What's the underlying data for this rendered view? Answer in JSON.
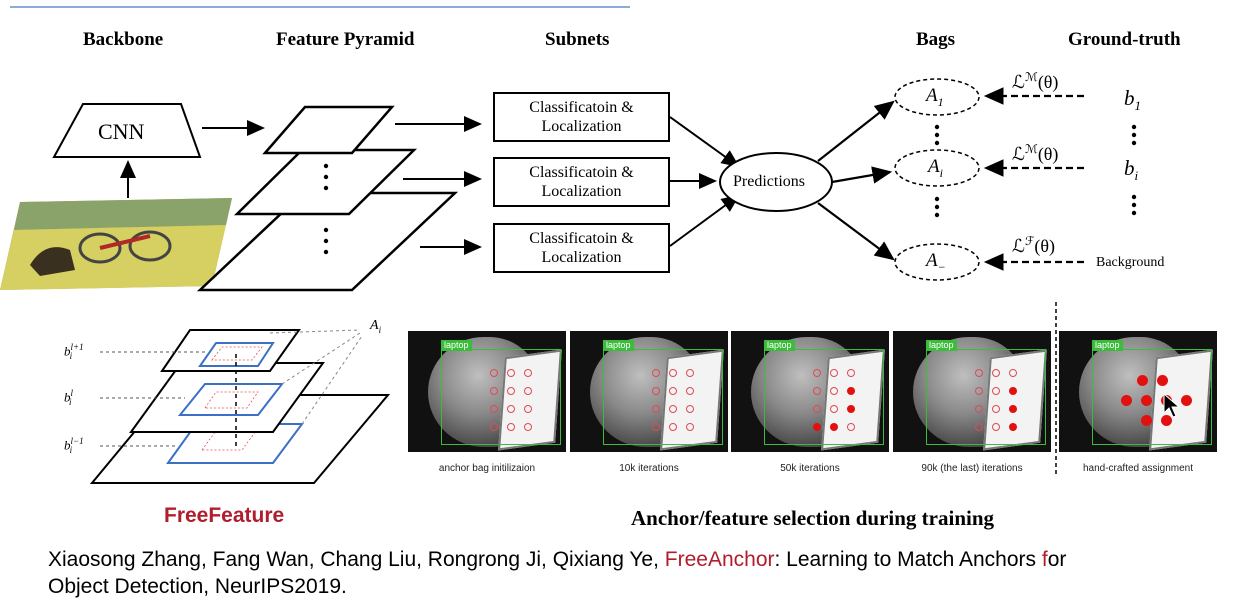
{
  "headers": {
    "backbone": "Backbone",
    "feature_pyramid": "Feature Pyramid",
    "subnets": "Subnets",
    "bags": "Bags",
    "ground_truth": "Ground-truth"
  },
  "cnn_label": "CNN",
  "subnet_boxes": [
    {
      "line1": "Classificatoin &",
      "line2": "Localization"
    },
    {
      "line1": "Classificatoin &",
      "line2": "Localization"
    },
    {
      "line1": "Classificatoin &",
      "line2": "Localization"
    }
  ],
  "predictions_label": "Predictions",
  "bags": {
    "a1": "A",
    "a1_sub": "1",
    "ai": "A",
    "ai_sub": "i",
    "a_bg": "A",
    "a_bg_sub": "−"
  },
  "losses": {
    "l1": "ℒ",
    "l1_sup": "ℳ",
    "l1_arg": "(θ)",
    "l2": "ℒ",
    "l2_sup": "ℳ",
    "l2_arg": "(θ)",
    "l3": "ℒ",
    "l3_sup": "ℱ",
    "l3_arg": "(θ)"
  },
  "ground_truth_items": {
    "b1": "b",
    "b1_sub": "1",
    "bi": "b",
    "bi_sub": "i",
    "background": "Background"
  },
  "freefeature": {
    "ai_label": "A",
    "ai_sub": "i",
    "level_top": "b",
    "level_top_sup": "l+1",
    "level_top_sub": "i",
    "level_mid": "b",
    "level_mid_sup": "l",
    "level_mid_sub": "i",
    "level_bot": "b",
    "level_bot_sup": "l−1",
    "level_bot_sub": "i",
    "title": "FreeFeature"
  },
  "panels": [
    {
      "tag": "laptop",
      "caption": "anchor bag initilizaion"
    },
    {
      "tag": "laptop",
      "caption": "10k iterations"
    },
    {
      "tag": "laptop",
      "caption": "50k iterations"
    },
    {
      "tag": "laptop",
      "caption": "90k (the last) iterations"
    },
    {
      "tag": "laptop",
      "caption": "hand-crafted assignment"
    }
  ],
  "panels_title": "Anchor/feature selection during training",
  "citation": {
    "part1": "Xiaosong Zhang, Fang Wan, Chang Liu, Rongrong Ji, Qixiang Ye, ",
    "highlight": "FreeAnchor",
    "part2": ": Learning to Match Anchors ",
    "f": "f",
    "part3": "or",
    "line2": "Object Detection, NeurIPS2019."
  },
  "colors": {
    "accent_red": "#b01e2e",
    "anchor_blue": "#3d6fc4",
    "gt_green": "#3bbd3b"
  }
}
